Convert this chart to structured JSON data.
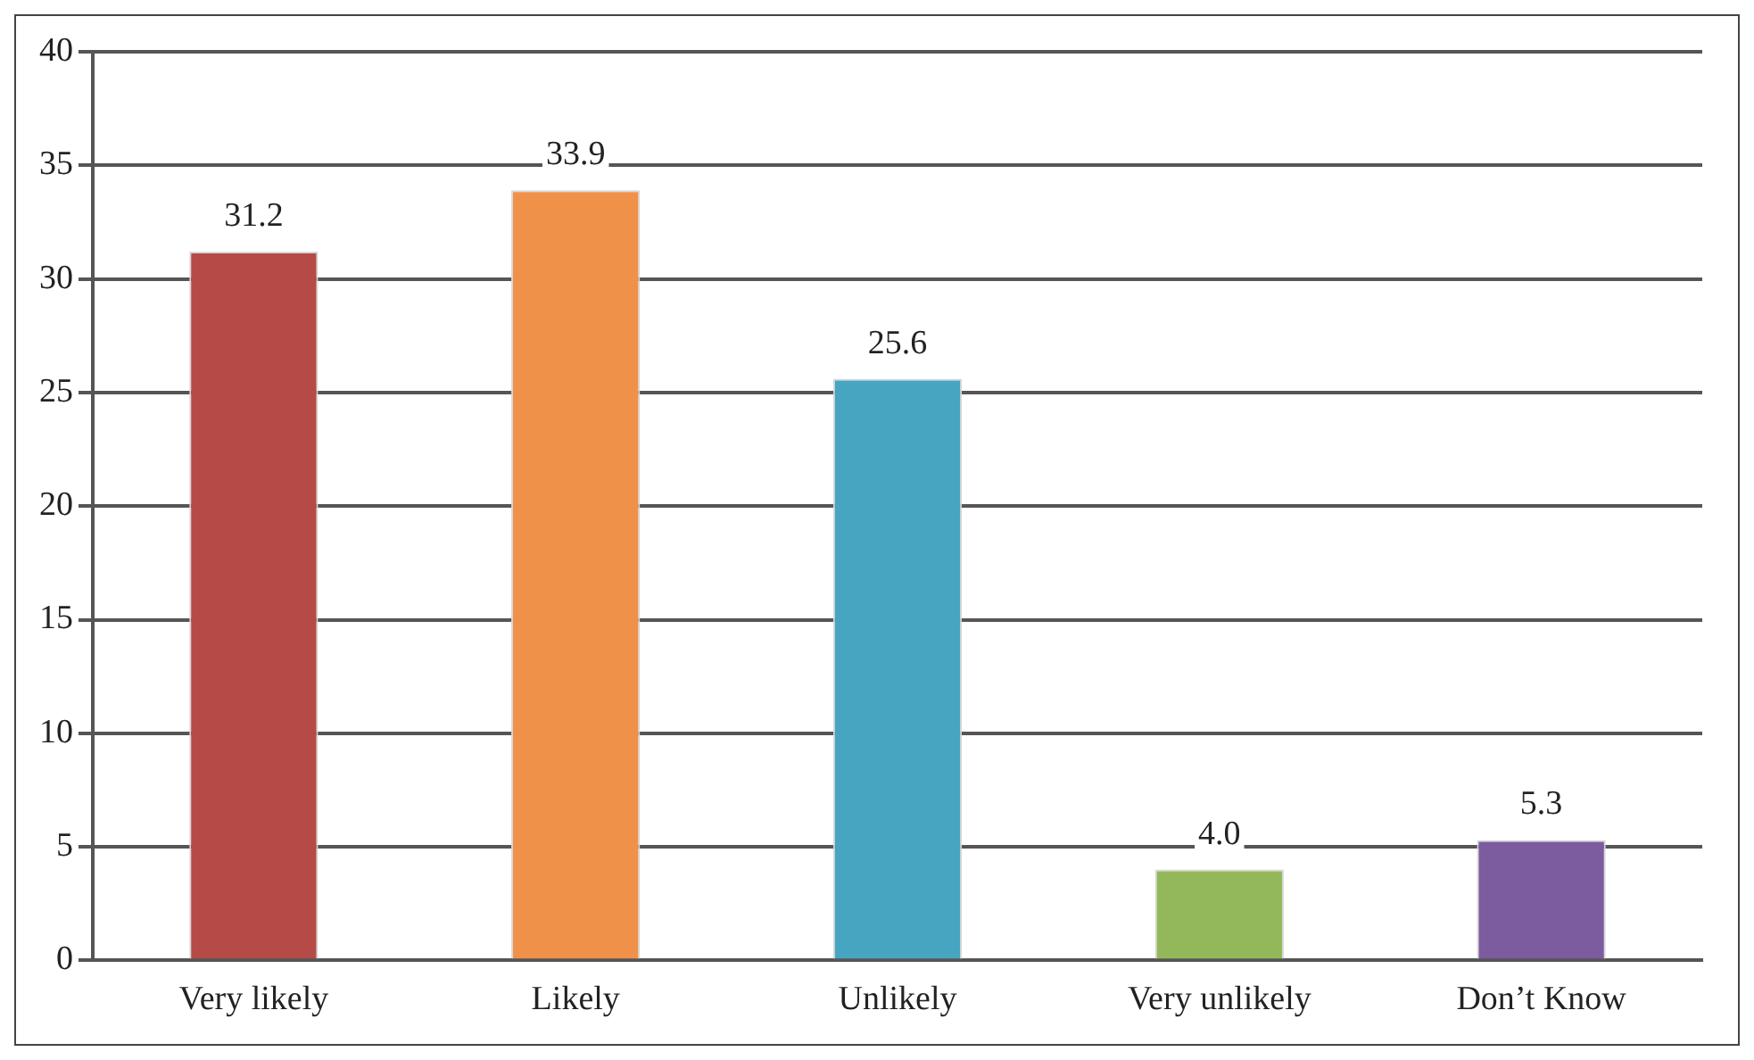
{
  "chart_data": {
    "type": "bar",
    "categories": [
      "Very likely",
      "Likely",
      "Unlikely",
      "Very unlikely",
      "Don’t Know"
    ],
    "values": [
      31.2,
      33.9,
      25.6,
      4.0,
      5.3
    ],
    "colors": [
      "#b54a47",
      "#f0914a",
      "#46a5c1",
      "#92b85a",
      "#7c5b9e"
    ],
    "value_labels": [
      "31.2",
      "33.9",
      "25.6",
      "4.0",
      "5.3"
    ],
    "ylim": [
      0,
      40
    ],
    "yticks": [
      0,
      5,
      10,
      15,
      20,
      25,
      30,
      35,
      40
    ],
    "grid": "y",
    "legend": false
  }
}
